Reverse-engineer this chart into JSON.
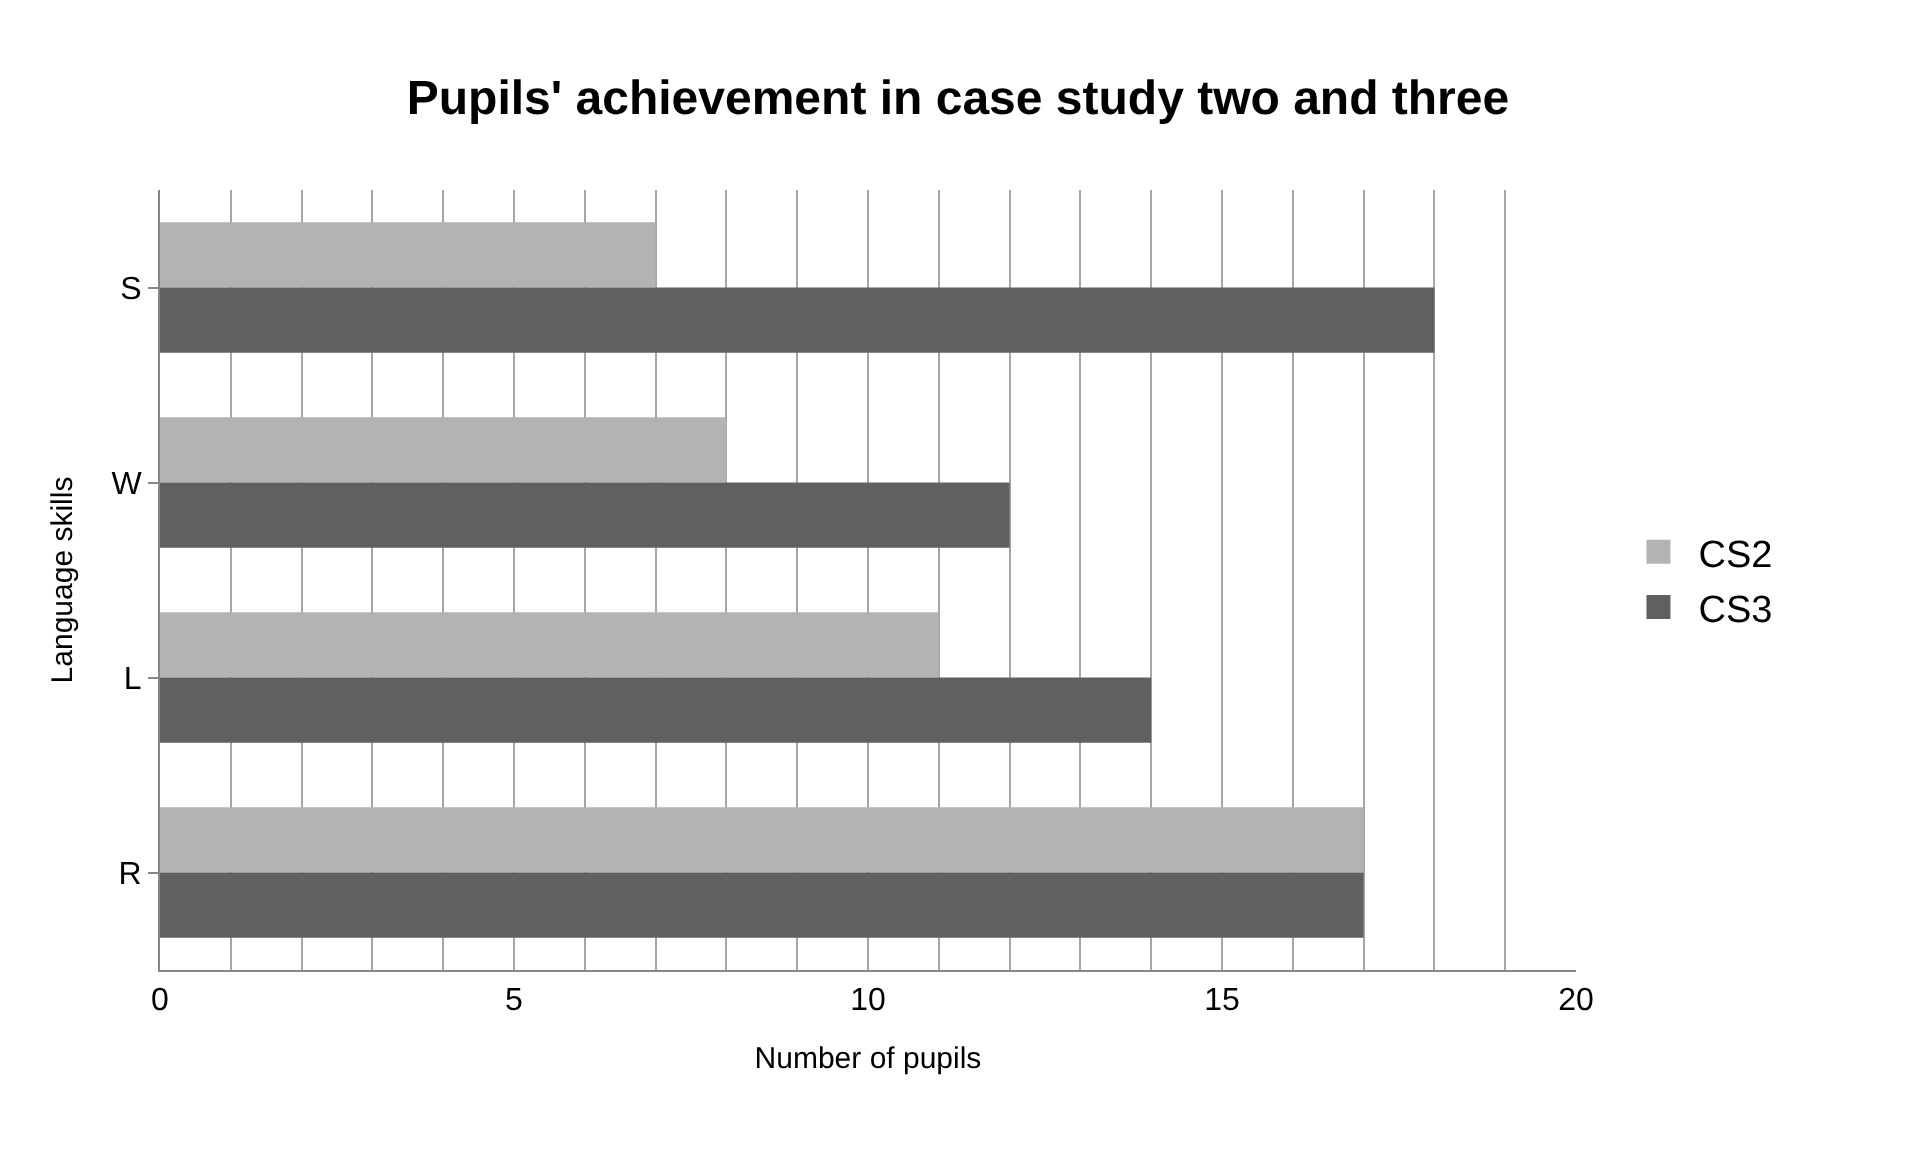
{
  "chart_data": {
    "type": "bar",
    "orientation": "horizontal",
    "title": "Pupils' achievement in case study two and three",
    "xlabel": "Number of pupils",
    "ylabel": "Language skills",
    "categories": [
      "S",
      "W",
      "L",
      "R"
    ],
    "series": [
      {
        "name": "CS2",
        "color": "#b3b3b3",
        "values": [
          7,
          8,
          11,
          17
        ]
      },
      {
        "name": "CS3",
        "color": "#606060",
        "values": [
          18,
          12,
          14,
          17
        ]
      }
    ],
    "xlim": [
      0,
      20
    ],
    "xticks": [
      0,
      {
        "value": 1,
        "label": null
      },
      {
        "value": 2,
        "label": null
      },
      {
        "value": 3,
        "label": null
      },
      {
        "value": 4,
        "label": null
      },
      5,
      {
        "value": 6,
        "label": null
      },
      {
        "value": 7,
        "label": null
      },
      {
        "value": 8,
        "label": null
      },
      {
        "value": 9,
        "label": null
      },
      10,
      {
        "value": 11,
        "label": null
      },
      {
        "value": 12,
        "label": null
      },
      {
        "value": 13,
        "label": null
      },
      {
        "value": 14,
        "label": null
      },
      15,
      {
        "value": 16,
        "label": null
      },
      {
        "value": 17,
        "label": null
      },
      {
        "value": 18,
        "label": null
      },
      {
        "value": 19,
        "label": null
      },
      20
    ],
    "grid": "x",
    "legend": "right"
  }
}
